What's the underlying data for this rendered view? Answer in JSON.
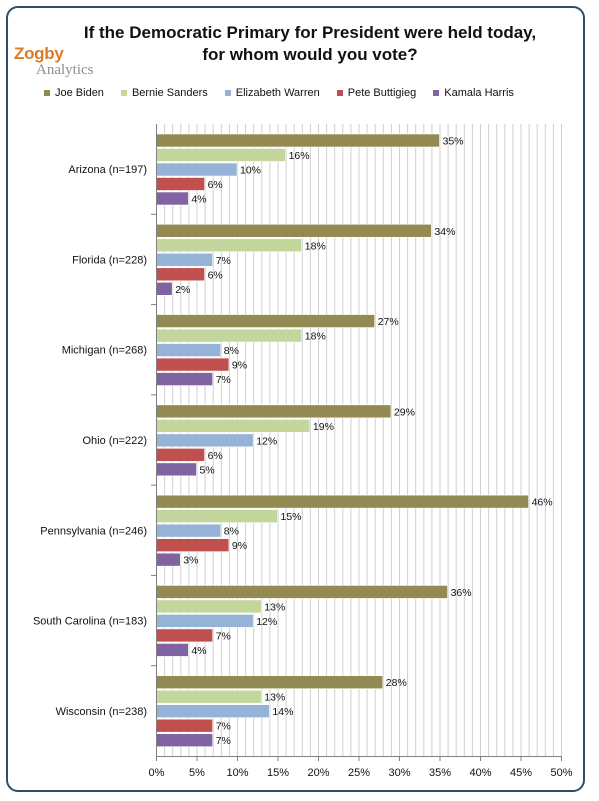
{
  "chart_data": {
    "type": "bar",
    "orientation": "horizontal",
    "title_line1": "If the Democratic Primary for President were held today,",
    "title_line2": "for whom would you vote?",
    "categories": [
      "Arizona (n=197)",
      "Florida (n=228)",
      "Michigan (n=268)",
      "Ohio (n=222)",
      "Pennsylvania (n=246)",
      "South Carolina (n=183)",
      "Wisconsin (n=238)"
    ],
    "series": [
      {
        "name": "Joe Biden",
        "color": "#938953",
        "values": [
          35,
          34,
          27,
          29,
          46,
          36,
          28
        ]
      },
      {
        "name": "Bernie Sanders",
        "color": "#c3d69b",
        "values": [
          16,
          18,
          18,
          19,
          15,
          13,
          13
        ]
      },
      {
        "name": "Elizabeth Warren",
        "color": "#95b3d7",
        "values": [
          10,
          7,
          8,
          12,
          8,
          12,
          14
        ]
      },
      {
        "name": "Pete Buttigieg",
        "color": "#c0504d",
        "values": [
          6,
          6,
          9,
          6,
          9,
          7,
          7
        ]
      },
      {
        "name": "Kamala Harris",
        "color": "#8064a2",
        "values": [
          4,
          2,
          7,
          5,
          3,
          4,
          7
        ]
      }
    ],
    "xlim": [
      0,
      50
    ],
    "xticks": [
      "0%",
      "5%",
      "10%",
      "15%",
      "20%",
      "25%",
      "30%",
      "35%",
      "40%",
      "45%",
      "50%"
    ],
    "value_suffix": "%",
    "grid": true,
    "legend_position": "top"
  },
  "logo": {
    "line1": "Zogby",
    "line2": "Analytics"
  }
}
